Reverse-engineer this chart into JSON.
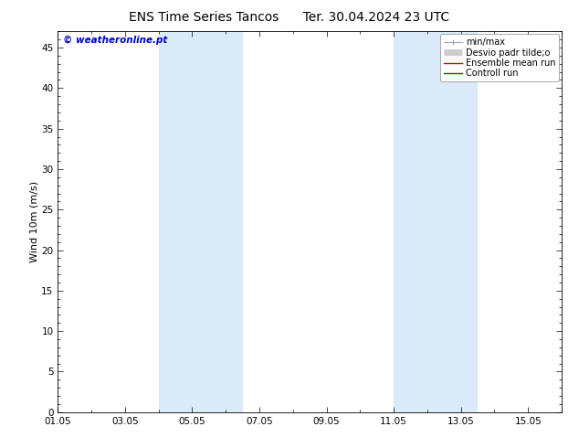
{
  "title_left": "ENS Time Series Tancos",
  "title_right": "Ter. 30.04.2024 23 UTC",
  "ylabel": "Wind 10m (m/s)",
  "watermark": "© weatheronline.pt",
  "background_color": "#ffffff",
  "plot_bg_color": "#ffffff",
  "ylim": [
    0,
    47
  ],
  "yticks": [
    0,
    5,
    10,
    15,
    20,
    25,
    30,
    35,
    40,
    45
  ],
  "xlim": [
    0,
    15
  ],
  "xtick_labels": [
    "01.05",
    "03.05",
    "05.05",
    "07.05",
    "09.05",
    "11.05",
    "13.05",
    "15.05"
  ],
  "xtick_positions": [
    0,
    2,
    4,
    6,
    8,
    10,
    12,
    14
  ],
  "blue_bands": [
    {
      "start": 3.0,
      "end": 5.5
    },
    {
      "start": 10.0,
      "end": 12.5
    }
  ],
  "band_color": "#daeaf8",
  "title_fontsize": 10,
  "label_fontsize": 8,
  "tick_fontsize": 7.5,
  "legend_fontsize": 7,
  "watermark_color": "#0000cc",
  "watermark_fontsize": 7.5,
  "legend_min_max_color": "#aaaaaa",
  "legend_desvio_color": "#cccccc",
  "legend_ens_color": "#dd0000",
  "legend_ctrl_color": "#006600"
}
